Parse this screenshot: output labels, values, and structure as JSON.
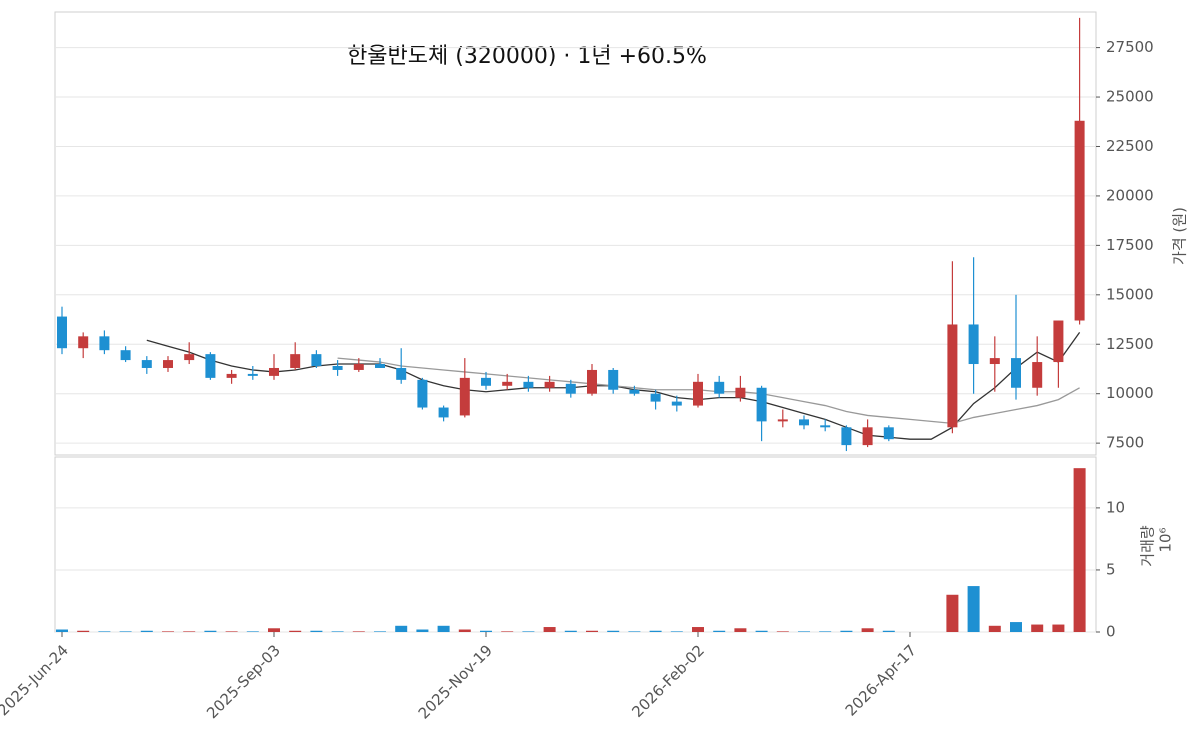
{
  "chart_data": [
    {
      "type": "candlestick",
      "title": "한울반도체 (320000)  ·  1년 +60.5%",
      "y_label": "가격 (원)",
      "up_color": "#c43c3c",
      "down_color": "#1e90d2",
      "open": [
        13900,
        12300,
        12900,
        12200,
        11700,
        11300,
        11700,
        12000,
        10800,
        11000,
        10900,
        11300,
        12000,
        11400,
        11200,
        11500,
        11300,
        10700,
        9300,
        8900,
        10800,
        10400,
        10600,
        10300,
        10500,
        10000,
        11200,
        10200,
        10000,
        9600,
        9400,
        10600,
        9800,
        10300,
        8600,
        8700,
        8400,
        8300,
        7400,
        8300,
        null,
        null,
        8300,
        13500,
        11500,
        11800,
        10300,
        11600,
        13700
      ],
      "high": [
        14400,
        13100,
        13200,
        12400,
        11900,
        11900,
        12600,
        12100,
        11200,
        11400,
        12000,
        12600,
        12200,
        11700,
        11800,
        11800,
        12300,
        10800,
        9400,
        11800,
        11100,
        11000,
        10900,
        10900,
        10700,
        11500,
        11300,
        10400,
        10200,
        9900,
        11000,
        10900,
        10900,
        10400,
        9200,
        8900,
        8700,
        8400,
        8700,
        8400,
        null,
        null,
        16700,
        16900,
        12900,
        15000,
        12900,
        13700,
        29000
      ],
      "low": [
        12000,
        11800,
        12000,
        11600,
        11000,
        11100,
        11500,
        10700,
        10500,
        10700,
        10700,
        11200,
        11300,
        10900,
        11100,
        11300,
        10500,
        9200,
        8600,
        8800,
        10200,
        10200,
        10100,
        10100,
        9800,
        9900,
        10000,
        9900,
        9200,
        9100,
        9300,
        9800,
        9600,
        7600,
        8300,
        8200,
        8100,
        7100,
        7300,
        7600,
        null,
        null,
        8000,
        10000,
        10100,
        9700,
        9900,
        10300,
        13500
      ],
      "close": [
        12300,
        12900,
        12200,
        11700,
        11300,
        11700,
        12000,
        10800,
        11000,
        10900,
        11300,
        12000,
        11400,
        11200,
        11500,
        11300,
        10700,
        9300,
        8800,
        10800,
        10400,
        10600,
        10300,
        10600,
        10000,
        11200,
        10200,
        10000,
        9600,
        9400,
        10600,
        10000,
        10300,
        8600,
        8700,
        8400,
        8300,
        7400,
        8300,
        7700,
        null,
        null,
        13500,
        11500,
        11800,
        10300,
        11600,
        13700,
        23800
      ],
      "ma_lines": [
        {
          "color": "#333333",
          "values": [
            null,
            null,
            null,
            null,
            12700,
            12400,
            12100,
            11700,
            11400,
            11200,
            11100,
            11200,
            11400,
            11500,
            11500,
            11500,
            11200,
            10700,
            10400,
            10200,
            10100,
            10200,
            10300,
            10300,
            10300,
            10400,
            10400,
            10200,
            10100,
            9800,
            9700,
            9800,
            9800,
            9600,
            9300,
            9000,
            8700,
            8300,
            7900,
            7800,
            7700,
            7700,
            8300,
            9500,
            10300,
            11300,
            12100,
            11600,
            13100
          ]
        },
        {
          "color": "#999999",
          "values": [
            null,
            null,
            null,
            null,
            null,
            null,
            null,
            null,
            null,
            null,
            null,
            null,
            null,
            11800,
            11700,
            11600,
            11400,
            11300,
            11200,
            11100,
            11000,
            10900,
            10800,
            10700,
            10600,
            10500,
            10400,
            10300,
            10200,
            10200,
            10200,
            10100,
            10100,
            10000,
            9800,
            9600,
            9400,
            9100,
            8900,
            8800,
            8700,
            8600,
            8500,
            8800,
            9000,
            9200,
            9400,
            9700,
            10300
          ]
        }
      ],
      "ylim": [
        6900,
        29300
      ],
      "yticks": [
        7500,
        10000,
        12500,
        15000,
        17500,
        20000,
        22500,
        25000,
        27500
      ],
      "grid": true
    },
    {
      "type": "bar",
      "y_label": "거래량",
      "y_unit": "10⁶",
      "categories": [
        "2025-Jun-24",
        null,
        null,
        null,
        null,
        null,
        null,
        null,
        null,
        null,
        "2025-Sep-03",
        null,
        null,
        null,
        null,
        null,
        null,
        null,
        null,
        null,
        "2025-Nov-19",
        null,
        null,
        null,
        null,
        null,
        null,
        null,
        null,
        null,
        "2026-Feb-02",
        null,
        null,
        null,
        null,
        null,
        null,
        null,
        null,
        null,
        "2026-Apr-17",
        null,
        null,
        null,
        null,
        null,
        null,
        null,
        null
      ],
      "values": [
        0.2,
        0.1,
        0.05,
        0.05,
        0.1,
        0.05,
        0.05,
        0.1,
        0.05,
        0.05,
        0.3,
        0.1,
        0.1,
        0.05,
        0.05,
        0.05,
        0.5,
        0.2,
        0.5,
        0.2,
        0.1,
        0.05,
        0.05,
        0.4,
        0.1,
        0.1,
        0.1,
        0.05,
        0.1,
        0.05,
        0.4,
        0.1,
        0.3,
        0.1,
        0.05,
        0.05,
        0.05,
        0.1,
        0.3,
        0.1,
        null,
        null,
        3.0,
        3.7,
        0.5,
        0.8,
        0.6,
        0.6,
        13.2
      ],
      "ylim": [
        0,
        14.1
      ],
      "yticks": [
        0,
        5,
        10
      ],
      "grid": true
    }
  ]
}
